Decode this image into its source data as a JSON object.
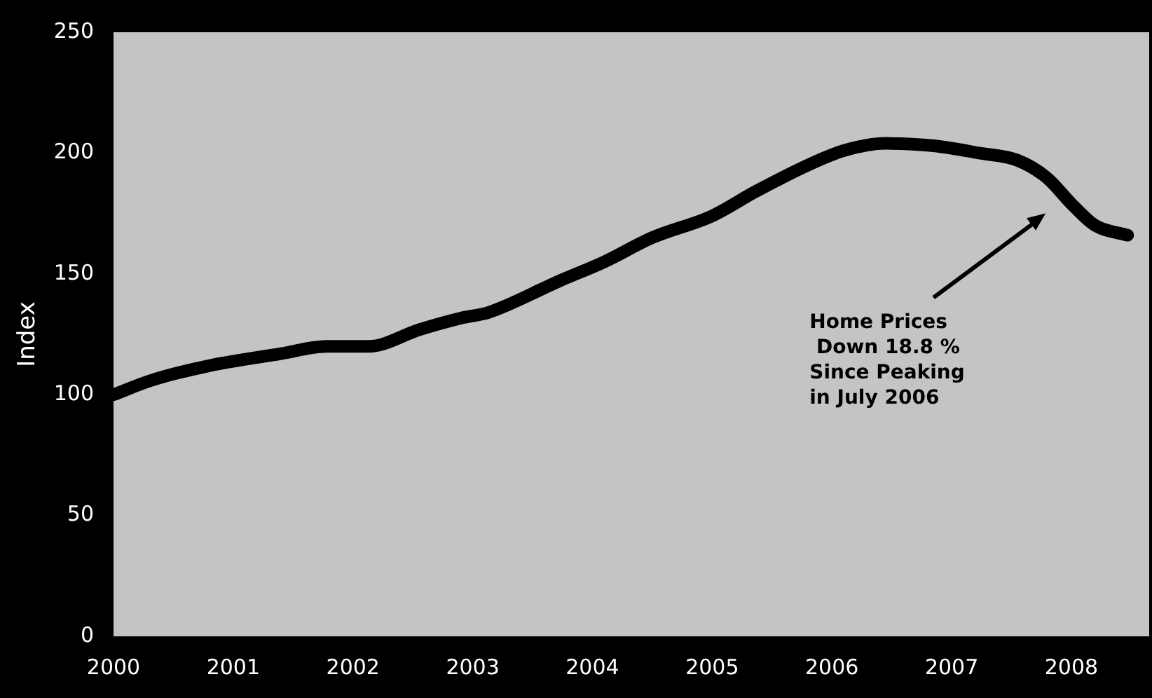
{
  "chart_data": {
    "type": "line",
    "ylabel": "Index",
    "xlim": [
      2000,
      2008.65
    ],
    "xticks": [
      2000,
      2001,
      2002,
      2003,
      2004,
      2005,
      2006,
      2007,
      2008
    ],
    "ylim": [
      0,
      250
    ],
    "yticks": [
      0,
      50,
      100,
      150,
      200,
      250
    ],
    "grid": false,
    "legend": false,
    "series": [
      {
        "color": "#000000",
        "x": [
          2000,
          2000.32,
          2000.8,
          2001.4,
          2001.78,
          2002.13,
          2002.56,
          2002.93,
          2003.13,
          2003.72,
          2004.1,
          2004.5,
          2005.0,
          2005.36,
          2005.8,
          2006.1,
          2006.45,
          2006.85,
          2007.23,
          2007.55,
          2007.79,
          2008.02,
          2008.2,
          2008.47
        ],
        "values": [
          100,
          106,
          112,
          117,
          120,
          120,
          127,
          132,
          134,
          147,
          155,
          165,
          174,
          184,
          195,
          201,
          204,
          203,
          200,
          197,
          190,
          178,
          170,
          166
        ]
      }
    ],
    "annotations": [
      "Home Prices\n Down 18.8 %\nSince Peaking\nin July 2006"
    ]
  }
}
